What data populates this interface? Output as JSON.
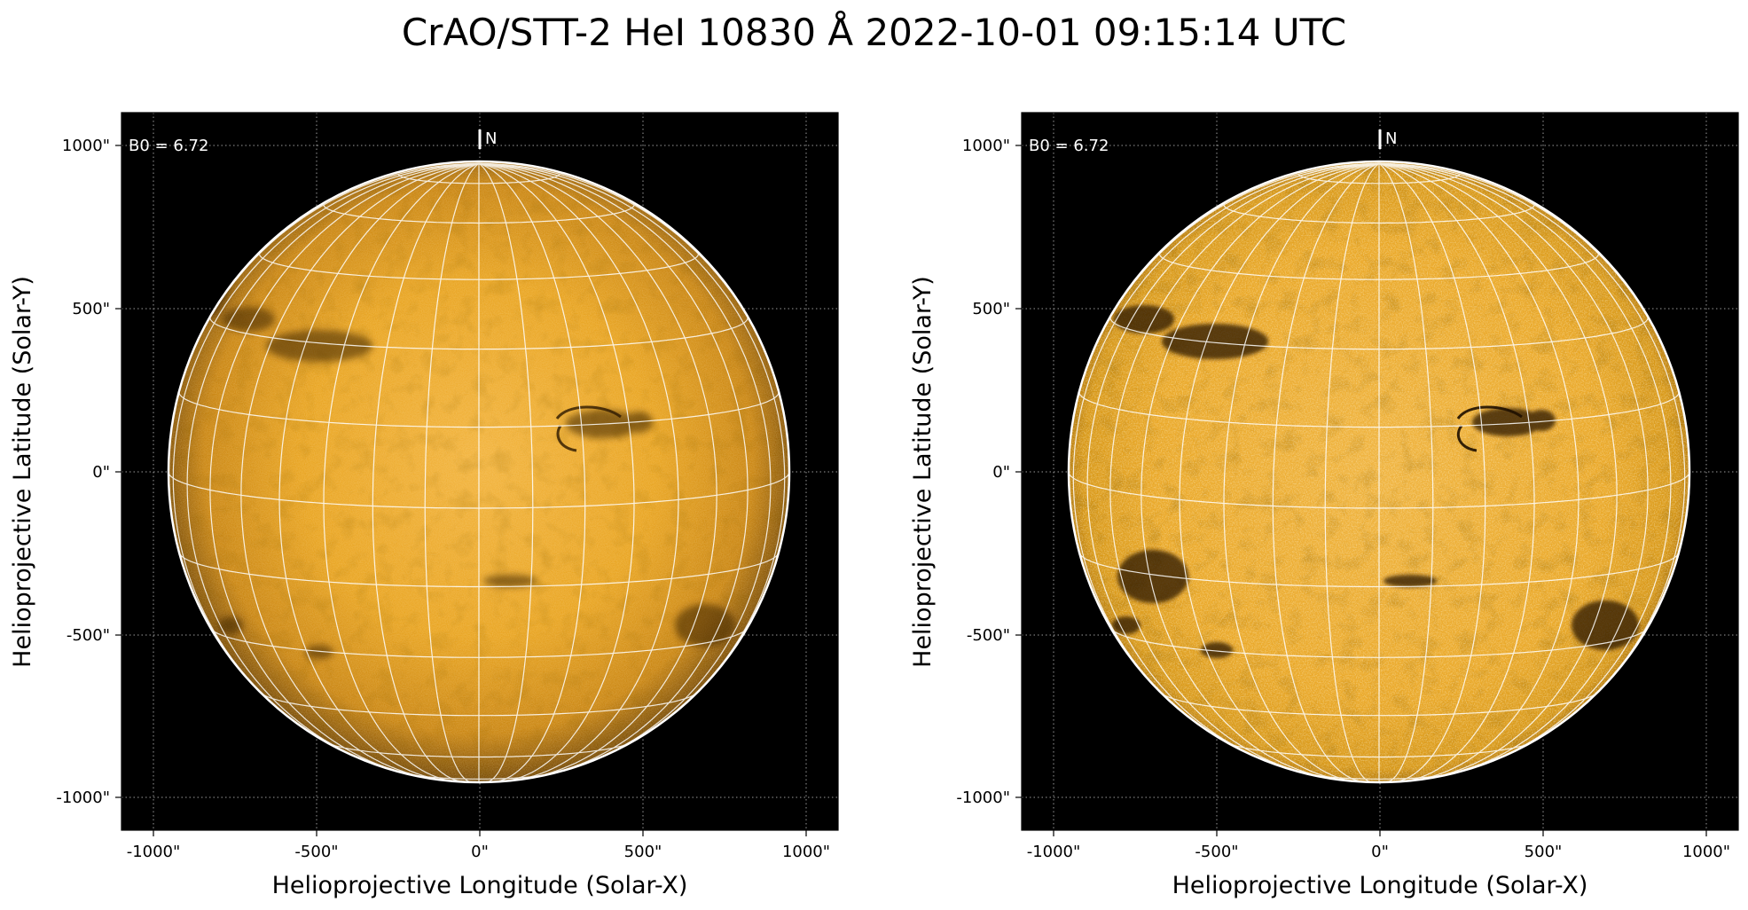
{
  "figure": {
    "title": "CrAO/STT-2 HeI 10830 Å 2022-10-01 09:15:14 UTC"
  },
  "panels": [
    {
      "b0_label": "B0 = 6.72",
      "north_label": "N",
      "xlabel": "Helioprojective Longitude (Solar-X)",
      "ylabel": "Helioprojective Latitude (Solar-Y)",
      "xticks": [
        "-1000\"",
        "-500\"",
        "0\"",
        "500\"",
        "1000\""
      ],
      "yticks": [
        "1000\"",
        "500\"",
        "0\"",
        "-500\"",
        "-1000\""
      ],
      "processing": "original"
    },
    {
      "b0_label": "B0 = 6.72",
      "north_label": "N",
      "xlabel": "Helioprojective Longitude (Solar-X)",
      "ylabel": "Helioprojective Latitude (Solar-Y)",
      "xticks": [
        "-1000\"",
        "-500\"",
        "0\"",
        "500\"",
        "1000\""
      ],
      "yticks": [
        "1000\"",
        "500\"",
        "0\"",
        "-500\"",
        "-1000\""
      ],
      "processing": "enhanced"
    }
  ],
  "colors": {
    "disk_base": "#e39400",
    "disk_bright": "#f6c35a",
    "disk_dark": "#4a2a00",
    "sky": "#000000",
    "grid": "#ffffff"
  }
}
